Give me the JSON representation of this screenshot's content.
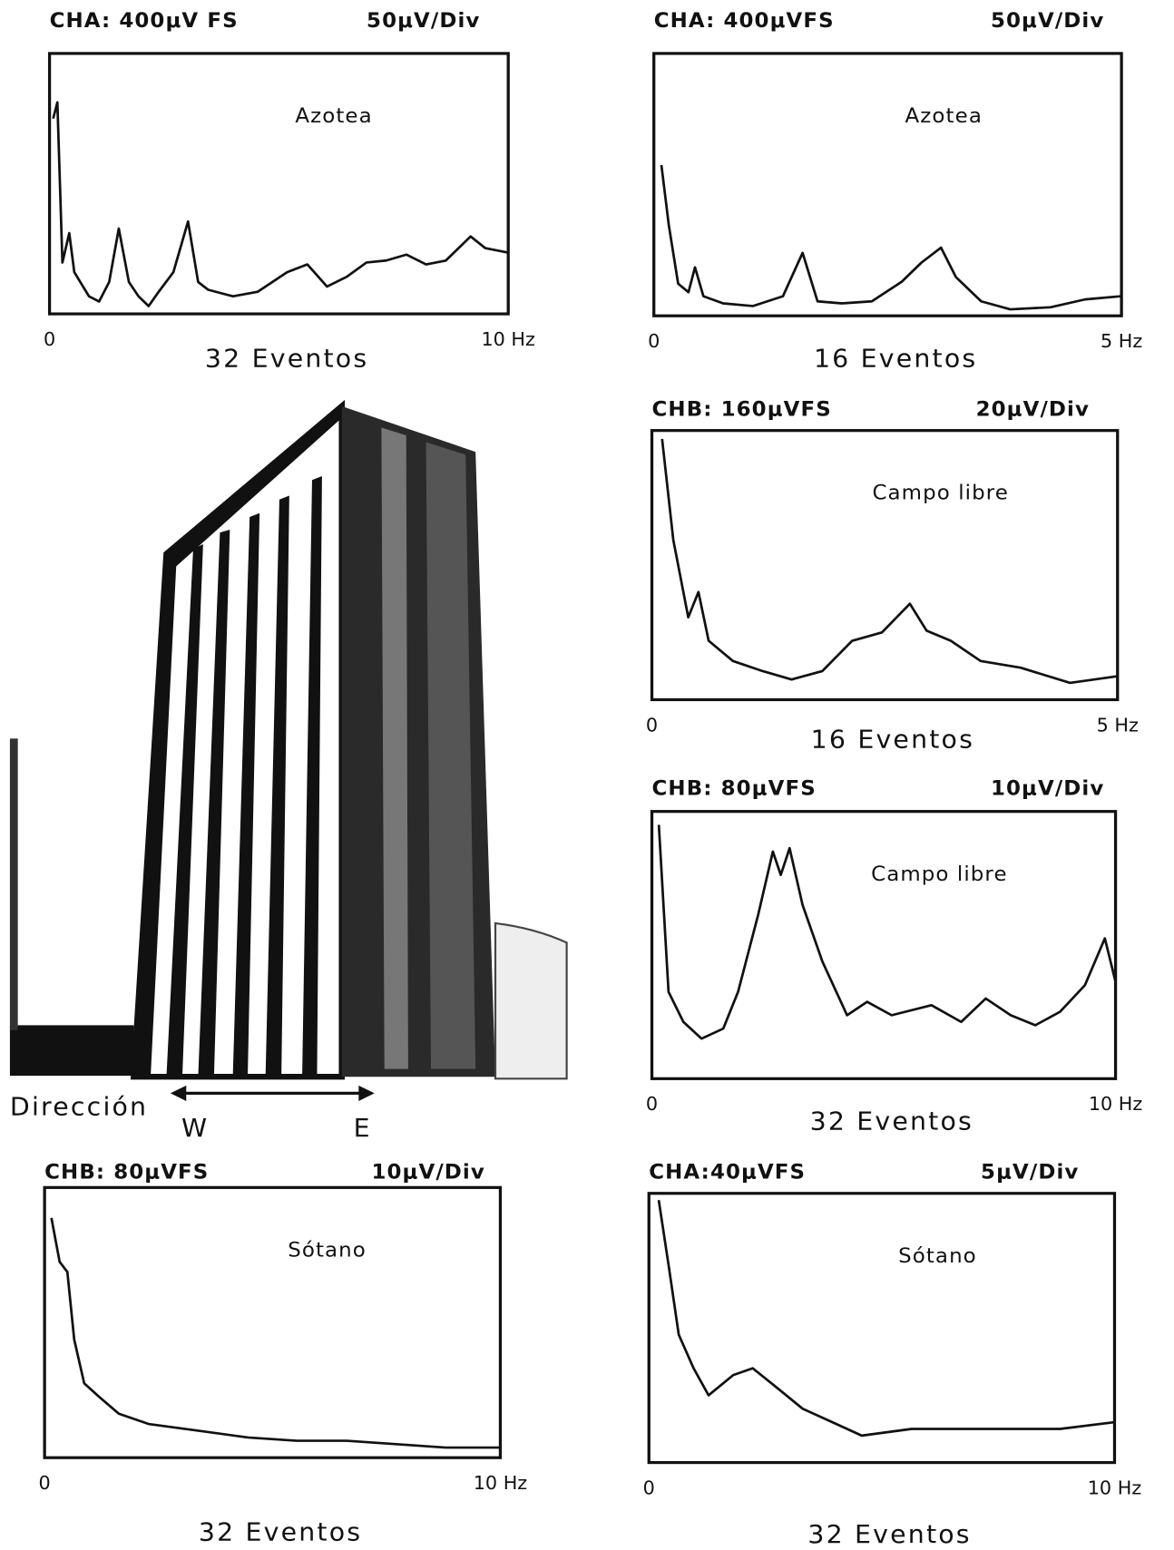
{
  "chart_data": [
    {
      "type": "line",
      "header_left": "CHA: 400μV FS",
      "header_right": "50μV/Div",
      "label": "Azotea",
      "caption": "32 Eventos",
      "color": "#111111",
      "xlim": [
        0,
        10
      ],
      "xticks": [
        0,
        {
          "value": 10,
          "label": "10 Hz"
        }
      ],
      "ylim": [
        0,
        400
      ],
      "x": [
        0.08,
        0.17,
        0.28,
        0.43,
        0.54,
        0.86,
        1.08,
        1.3,
        1.51,
        1.73,
        1.94,
        2.16,
        2.38,
        2.7,
        3.02,
        3.24,
        3.46,
        4.0,
        4.54,
        5.18,
        5.62,
        6.05,
        6.48,
        6.91,
        7.34,
        7.78,
        8.21,
        8.64,
        9.18,
        9.5,
        10.0
      ],
      "values": [
        300,
        325,
        79,
        124,
        64,
        27,
        19,
        49,
        131,
        49,
        27,
        12,
        34,
        64,
        142,
        49,
        37,
        27,
        34,
        64,
        76,
        42,
        57,
        79,
        82,
        91,
        76,
        82,
        119,
        101,
        94
      ]
    },
    {
      "type": "line",
      "header_left": "CHA: 400μVFS",
      "header_right": "50μV/Div",
      "label": "Azotea",
      "caption": "16 Eventos",
      "color": "#111111",
      "xlim": [
        0,
        5
      ],
      "xticks": [
        0,
        {
          "value": 5,
          "label": "5 Hz"
        }
      ],
      "ylim": [
        0,
        400
      ],
      "x": [
        0.08,
        0.16,
        0.26,
        0.37,
        0.44,
        0.53,
        0.74,
        1.06,
        1.38,
        1.59,
        1.75,
        2.01,
        2.33,
        2.65,
        2.86,
        3.07,
        3.23,
        3.5,
        3.81,
        4.24,
        4.61,
        5.0
      ],
      "values": [
        230,
        138,
        49,
        36,
        74,
        30,
        19,
        15,
        30,
        96,
        22,
        19,
        22,
        52,
        81,
        104,
        59,
        22,
        10,
        13,
        25,
        30
      ]
    },
    {
      "type": "line",
      "header_left": "CHB: 160μVFS",
      "header_right": "20μV/Div",
      "label": "Campo libre",
      "caption": "16 Eventos",
      "color": "#111111",
      "xlim": [
        0,
        5
      ],
      "xticks": [
        0,
        {
          "value": 5,
          "label": "5 Hz"
        }
      ],
      "ylim": [
        0,
        160
      ],
      "x": [
        0.11,
        0.23,
        0.39,
        0.5,
        0.61,
        0.87,
        1.19,
        1.5,
        1.83,
        2.15,
        2.47,
        2.77,
        2.95,
        3.21,
        3.53,
        3.96,
        4.49,
        5.0
      ],
      "values": [
        155,
        95,
        49,
        64,
        35,
        23,
        17,
        12,
        17,
        35,
        40,
        57,
        41,
        35,
        23,
        19,
        10,
        14
      ]
    },
    {
      "type": "line",
      "header_left": "CHB: 80μVFS",
      "header_right": "10μV/Div",
      "label": "Campo libre",
      "caption": "32 Eventos",
      "color": "#111111",
      "xlim": [
        0,
        10
      ],
      "xticks": [
        0,
        {
          "value": 10,
          "label": "10 Hz"
        }
      ],
      "ylim": [
        0,
        80
      ],
      "x": [
        0.15,
        0.36,
        0.68,
        1.07,
        1.54,
        1.86,
        2.29,
        2.61,
        2.78,
        2.97,
        3.25,
        3.68,
        4.21,
        4.64,
        5.17,
        6.03,
        6.67,
        7.2,
        7.74,
        8.27,
        8.8,
        9.34,
        9.77,
        10.0
      ],
      "values": [
        76,
        26,
        17,
        12,
        15,
        26,
        49,
        68,
        61,
        69,
        52,
        35,
        19,
        23,
        19,
        22,
        17,
        24,
        19,
        16,
        20,
        28,
        42,
        29
      ]
    },
    {
      "type": "line",
      "header_left": "CHB: 80μVFS",
      "header_right": "10μV/Div",
      "label": "Sótano",
      "caption": "32 Eventos",
      "color": "#111111",
      "xlim": [
        0,
        10
      ],
      "xticks": [
        0,
        {
          "value": 10,
          "label": "10 Hz"
        }
      ],
      "ylim": [
        0,
        80
      ],
      "x": [
        0.15,
        0.33,
        0.5,
        0.65,
        0.87,
        1.2,
        1.63,
        2.28,
        3.37,
        4.46,
        5.54,
        6.63,
        7.72,
        8.8,
        10.0
      ],
      "values": [
        71,
        58,
        55,
        35,
        22,
        18,
        13,
        10,
        8,
        6,
        5,
        5,
        4,
        3,
        3
      ]
    },
    {
      "type": "line",
      "header_left": "CHA:40μVFS",
      "header_right": "5μV/Div",
      "label": "Sótano",
      "caption": "32 Eventos",
      "color": "#111111",
      "xlim": [
        0,
        10
      ],
      "xticks": [
        0,
        {
          "value": 10,
          "label": "10 Hz"
        }
      ],
      "ylim": [
        0,
        40
      ],
      "x": [
        0.21,
        0.43,
        0.64,
        0.96,
        1.28,
        1.81,
        2.23,
        2.77,
        3.3,
        3.94,
        4.57,
        5.64,
        6.7,
        7.77,
        8.83,
        10.0
      ],
      "values": [
        39,
        29,
        19,
        14,
        10,
        13,
        14,
        11,
        8,
        6,
        4,
        5,
        5,
        5,
        5,
        6
      ]
    }
  ],
  "photo": {
    "direction_label": "Dirección",
    "west": "W",
    "east": "E"
  }
}
